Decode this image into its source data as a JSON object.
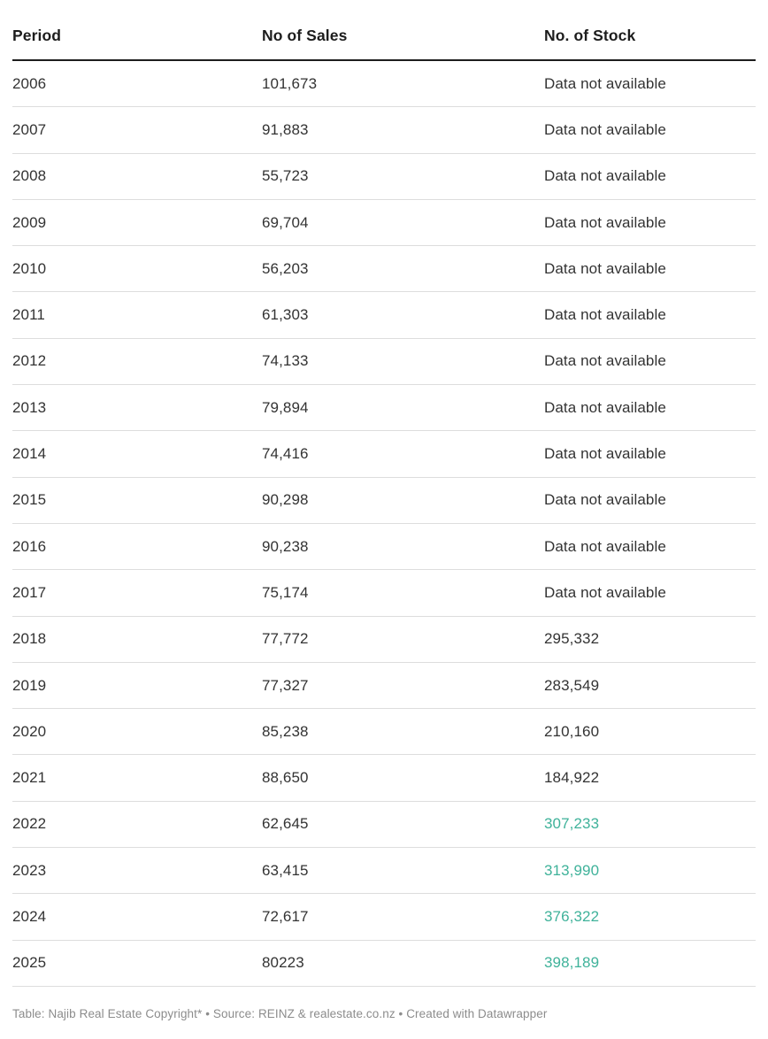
{
  "chart_data": {
    "type": "table",
    "columns": [
      "Period",
      "No of Sales",
      "No. of Stock"
    ],
    "rows": [
      {
        "period": "2006",
        "sales": "101,673",
        "stock": "Data not available",
        "highlight": false
      },
      {
        "period": "2007",
        "sales": "91,883",
        "stock": "Data not available",
        "highlight": false
      },
      {
        "period": "2008",
        "sales": "55,723",
        "stock": "Data not available",
        "highlight": false
      },
      {
        "period": "2009",
        "sales": "69,704",
        "stock": "Data not available",
        "highlight": false
      },
      {
        "period": "2010",
        "sales": "56,203",
        "stock": "Data not available",
        "highlight": false
      },
      {
        "period": "2011",
        "sales": "61,303",
        "stock": "Data not available",
        "highlight": false
      },
      {
        "period": "2012",
        "sales": "74,133",
        "stock": "Data not available",
        "highlight": false
      },
      {
        "period": "2013",
        "sales": "79,894",
        "stock": "Data not available",
        "highlight": false
      },
      {
        "period": "2014",
        "sales": "74,416",
        "stock": "Data not available",
        "highlight": false
      },
      {
        "period": "2015",
        "sales": "90,298",
        "stock": "Data not available",
        "highlight": false
      },
      {
        "period": "2016",
        "sales": "90,238",
        "stock": "Data not available",
        "highlight": false
      },
      {
        "period": "2017",
        "sales": "75,174",
        "stock": "Data not available",
        "highlight": false
      },
      {
        "period": "2018",
        "sales": "77,772",
        "stock": "295,332",
        "highlight": false
      },
      {
        "period": "2019",
        "sales": "77,327",
        "stock": "283,549",
        "highlight": false
      },
      {
        "period": "2020",
        "sales": "85,238",
        "stock": "210,160",
        "highlight": false
      },
      {
        "period": "2021",
        "sales": "88,650",
        "stock": "184,922",
        "highlight": false
      },
      {
        "period": "2022",
        "sales": "62,645",
        "stock": "307,233",
        "highlight": true
      },
      {
        "period": "2023",
        "sales": "63,415",
        "stock": "313,990",
        "highlight": true
      },
      {
        "period": "2024",
        "sales": "72,617",
        "stock": "376,322",
        "highlight": true
      },
      {
        "period": "2025",
        "sales": "80223",
        "stock": "398,189",
        "highlight": true
      }
    ],
    "title": "",
    "legend_position": "none",
    "grid": "horizontal-row-separators"
  },
  "header": {
    "col_period": "Period",
    "col_sales": "No of Sales",
    "col_stock": "No. of Stock"
  },
  "footer": {
    "text": "Table: Najib Real Estate Copyright* • Source: REINZ & realestate.co.nz • Created with Datawrapper"
  },
  "colors": {
    "highlight_green": "#3fb29a",
    "header_text": "#1d1d1d",
    "cell_text": "#333333",
    "header_border": "#1d1d1d",
    "row_border": "#dddddd",
    "footer_text": "#8c8c8c",
    "background": "#ffffff"
  }
}
